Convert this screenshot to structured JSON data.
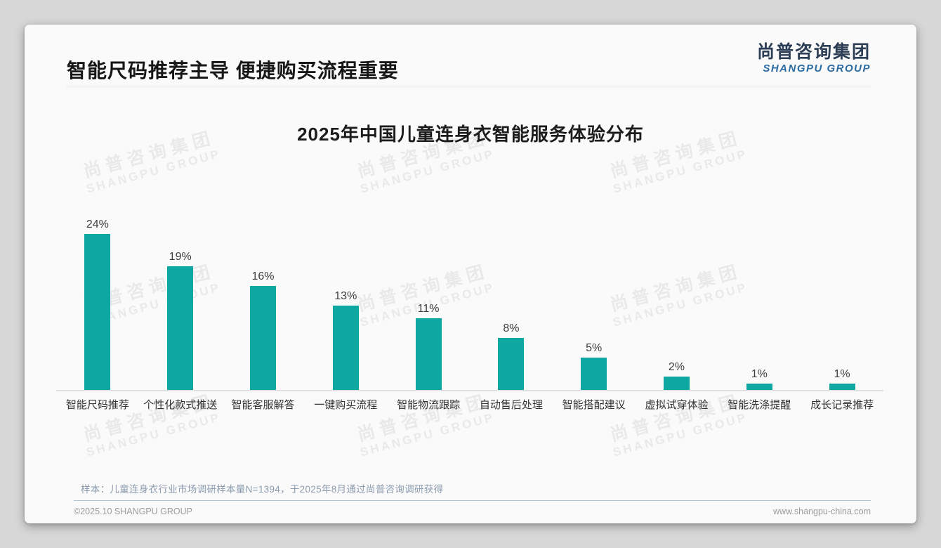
{
  "header": {
    "title": "智能尺码推荐主导 便捷购买流程重要",
    "logo_cn": "尚普咨询集团",
    "logo_en": "SHANGPU GROUP"
  },
  "chart_data": {
    "type": "bar",
    "title": "2025年中国儿童连身衣智能服务体验分布",
    "categories": [
      "智能尺码推荐",
      "个性化款式推送",
      "智能客服解答",
      "一键购买流程",
      "智能物流跟踪",
      "自动售后处理",
      "智能搭配建议",
      "虚拟试穿体验",
      "智能洗涤提醒",
      "成长记录推荐"
    ],
    "values": [
      24,
      19,
      16,
      13,
      11,
      8,
      5,
      2,
      1,
      1
    ],
    "value_labels": [
      "24%",
      "19%",
      "16%",
      "13%",
      "11%",
      "8%",
      "5%",
      "2%",
      "1%",
      "1%"
    ],
    "unit": "%",
    "ylim": [
      0,
      25
    ],
    "grid": false,
    "legend": false,
    "bar_color": "#0fa7a1",
    "axis_color": "#e0e0e0"
  },
  "watermark": {
    "line1": "尚普咨询集团",
    "line2": "SHANGPU GROUP"
  },
  "footnote": {
    "sample_note": "样本：儿童连身衣行业市场调研样本量N=1394，于2025年8月通过尚普咨询调研获得"
  },
  "footer": {
    "left": "©2025.10 SHANGPU GROUP",
    "right": "www.shangpu-china.com"
  }
}
